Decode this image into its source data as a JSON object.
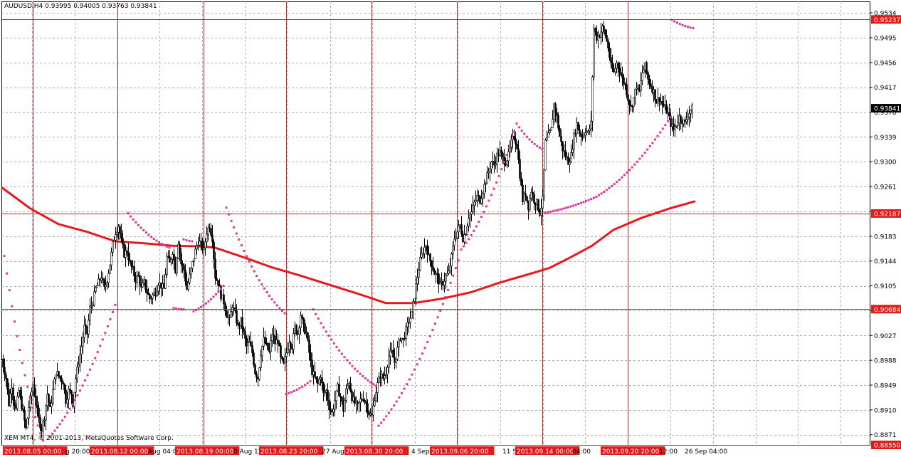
{
  "header": {
    "symbol": "AUDUSD,H4",
    "quote": "0.93995 0.94005 0.93763 0.93841"
  },
  "footer": {
    "copyright": "XEM MT4, © 2001-2013, MetaQuotes Software Corp."
  },
  "colors": {
    "background": "#ffffff",
    "grid": "#b0b0b0",
    "candle": "#000000",
    "moving_average": "#e8191b",
    "parabolic_sar": "#e0379a",
    "level_line": "#d42020",
    "marker_bg": "#e31a1a",
    "current_price_bg": "#000000"
  },
  "chart_data": {
    "type": "candlestick",
    "title": "AUDUSD,H4",
    "ylim": [
      0.8855,
      0.9552
    ],
    "y_ticks": [
      "0.9534",
      "0.9495",
      "0.9456",
      "0.9417",
      "0.9378",
      "0.9339",
      "0.9300",
      "0.9261",
      "0.9222",
      "0.9183",
      "0.9144",
      "0.9105",
      "0.9066",
      "0.9027",
      "0.8988",
      "0.8949",
      "0.8910",
      "0.8871"
    ],
    "current_price": 0.93841,
    "horizontal_levels": [
      0.95237,
      0.92187,
      0.90684,
      0.8855
    ],
    "x_labels": [
      {
        "text": "2013.08.05 00:00",
        "highlight": true
      },
      {
        "text": "g 20:00",
        "highlight": false
      },
      {
        "text": "2013.08.12 00:00",
        "highlight": true
      },
      {
        "text": "Aug 04:00",
        "highlight": false
      },
      {
        "text": "2013.08.19 00:00",
        "highlight": true
      },
      {
        "text": "0 Aug 12",
        "highlight": false
      },
      {
        "text": "2013.08.23 20:00",
        "highlight": true
      },
      {
        "text": "27 Aug",
        "highlight": false
      },
      {
        "text": "2013.08.30 20:00",
        "highlight": true
      },
      {
        "text": "4 Sep",
        "highlight": false
      },
      {
        "text": "2013.09.06 20:00",
        "highlight": true
      },
      {
        "text": "11 S",
        "highlight": false
      },
      {
        "text": "2013.09.14 00:00",
        "highlight": true
      },
      {
        "text": "04:00",
        "highlight": false
      },
      {
        "text": "2013.09.20 20:00",
        "highlight": true
      },
      {
        "text": "12:00",
        "highlight": false
      },
      {
        "text": "26 Sep 04:00",
        "highlight": false
      }
    ],
    "close_path": [
      [
        0,
        0.899
      ],
      [
        6,
        0.896
      ],
      [
        10,
        0.892
      ],
      [
        14,
        0.895
      ],
      [
        16,
        0.893
      ],
      [
        20,
        0.891
      ],
      [
        24,
        0.894
      ],
      [
        30,
        0.8905
      ],
      [
        34,
        0.888
      ],
      [
        38,
        0.8915
      ],
      [
        44,
        0.895
      ],
      [
        48,
        0.892
      ],
      [
        52,
        0.8895
      ],
      [
        56,
        0.888
      ],
      [
        60,
        0.89
      ],
      [
        64,
        0.8935
      ],
      [
        68,
        0.891
      ],
      [
        72,
        0.894
      ],
      [
        76,
        0.897
      ],
      [
        82,
        0.896
      ],
      [
        86,
        0.8955
      ],
      [
        90,
        0.8925
      ],
      [
        94,
        0.894
      ],
      [
        98,
        0.8935
      ],
      [
        100,
        0.892
      ],
      [
        104,
        0.896
      ],
      [
        108,
        0.8985
      ],
      [
        112,
        0.901
      ],
      [
        116,
        0.904
      ],
      [
        120,
        0.903
      ],
      [
        124,
        0.907
      ],
      [
        128,
        0.908
      ],
      [
        132,
        0.91
      ],
      [
        136,
        0.911
      ],
      [
        140,
        0.912
      ],
      [
        144,
        0.91
      ],
      [
        148,
        0.9115
      ],
      [
        152,
        0.914
      ],
      [
        156,
        0.917
      ],
      [
        160,
        0.919
      ],
      [
        164,
        0.92
      ],
      [
        168,
        0.9175
      ],
      [
        172,
        0.9155
      ],
      [
        176,
        0.916
      ],
      [
        180,
        0.914
      ],
      [
        184,
        0.913
      ],
      [
        188,
        0.9115
      ],
      [
        192,
        0.912
      ],
      [
        196,
        0.91
      ],
      [
        200,
        0.911
      ],
      [
        204,
        0.9095
      ],
      [
        208,
        0.9085
      ],
      [
        212,
        0.909
      ],
      [
        216,
        0.9095
      ],
      [
        220,
        0.911
      ],
      [
        224,
        0.9105
      ],
      [
        228,
        0.91
      ],
      [
        232,
        0.915
      ],
      [
        236,
        0.914
      ],
      [
        240,
        0.916
      ],
      [
        244,
        0.913
      ],
      [
        248,
        0.9175
      ],
      [
        252,
        0.914
      ],
      [
        256,
        0.913
      ],
      [
        260,
        0.91
      ],
      [
        264,
        0.912
      ],
      [
        268,
        0.914
      ],
      [
        272,
        0.916
      ],
      [
        276,
        0.9175
      ],
      [
        280,
        0.917
      ],
      [
        284,
        0.916
      ],
      [
        288,
        0.919
      ],
      [
        292,
        0.92
      ],
      [
        296,
        0.918
      ],
      [
        300,
        0.912
      ],
      [
        304,
        0.911
      ],
      [
        308,
        0.909
      ],
      [
        312,
        0.908
      ],
      [
        316,
        0.906
      ],
      [
        320,
        0.905
      ],
      [
        324,
        0.9075
      ],
      [
        328,
        0.906
      ],
      [
        332,
        0.904
      ],
      [
        336,
        0.905
      ],
      [
        340,
        0.903
      ],
      [
        344,
        0.901
      ],
      [
        348,
        0.9015
      ],
      [
        352,
        0.9
      ],
      [
        356,
        0.897
      ],
      [
        360,
        0.896
      ],
      [
        364,
        0.9
      ],
      [
        368,
        0.902
      ],
      [
        372,
        0.901
      ],
      [
        376,
        0.9
      ],
      [
        380,
        0.903
      ],
      [
        384,
        0.9015
      ],
      [
        388,
        0.902
      ],
      [
        392,
        0.899
      ],
      [
        396,
        0.898
      ],
      [
        400,
        0.9
      ],
      [
        404,
        0.902
      ],
      [
        408,
        0.901
      ],
      [
        412,
        0.904
      ],
      [
        416,
        0.903
      ],
      [
        420,
        0.906
      ],
      [
        424,
        0.904
      ],
      [
        428,
        0.903
      ],
      [
        432,
        0.9
      ],
      [
        436,
        0.897
      ],
      [
        440,
        0.896
      ],
      [
        444,
        0.895
      ],
      [
        448,
        0.8965
      ],
      [
        452,
        0.8935
      ],
      [
        456,
        0.894
      ],
      [
        460,
        0.8915
      ],
      [
        464,
        0.8905
      ],
      [
        468,
        0.8925
      ],
      [
        472,
        0.8945
      ],
      [
        476,
        0.893
      ],
      [
        480,
        0.891
      ],
      [
        484,
        0.894
      ],
      [
        488,
        0.8955
      ],
      [
        492,
        0.893
      ],
      [
        496,
        0.892
      ],
      [
        500,
        0.8915
      ],
      [
        504,
        0.8925
      ],
      [
        508,
        0.893
      ],
      [
        512,
        0.892
      ],
      [
        516,
        0.8905
      ],
      [
        520,
        0.89
      ],
      [
        524,
        0.893
      ],
      [
        528,
        0.895
      ],
      [
        532,
        0.8965
      ],
      [
        536,
        0.896
      ],
      [
        540,
        0.897
      ],
      [
        544,
        0.8995
      ],
      [
        548,
        0.9
      ],
      [
        552,
        0.8985
      ],
      [
        556,
        0.9005
      ],
      [
        560,
        0.9025
      ],
      [
        564,
        0.902
      ],
      [
        568,
        0.9035
      ],
      [
        572,
        0.905
      ],
      [
        576,
        0.906
      ],
      [
        580,
        0.909
      ],
      [
        584,
        0.912
      ],
      [
        588,
        0.9145
      ],
      [
        592,
        0.916
      ],
      [
        596,
        0.917
      ],
      [
        600,
        0.915
      ],
      [
        604,
        0.914
      ],
      [
        608,
        0.9125
      ],
      [
        612,
        0.912
      ],
      [
        616,
        0.9105
      ],
      [
        620,
        0.911
      ],
      [
        624,
        0.912
      ],
      [
        628,
        0.9125
      ],
      [
        632,
        0.915
      ],
      [
        636,
        0.918
      ],
      [
        640,
        0.919
      ],
      [
        644,
        0.92
      ],
      [
        648,
        0.918
      ],
      [
        652,
        0.919
      ],
      [
        656,
        0.9215
      ],
      [
        660,
        0.922
      ],
      [
        664,
        0.9235
      ],
      [
        668,
        0.9245
      ],
      [
        672,
        0.924
      ],
      [
        676,
        0.9255
      ],
      [
        680,
        0.927
      ],
      [
        684,
        0.9285
      ],
      [
        688,
        0.93
      ],
      [
        692,
        0.9295
      ],
      [
        696,
        0.931
      ],
      [
        700,
        0.9315
      ],
      [
        704,
        0.9305
      ],
      [
        708,
        0.93
      ],
      [
        712,
        0.931
      ],
      [
        716,
        0.933
      ],
      [
        720,
        0.934
      ],
      [
        724,
        0.9325
      ],
      [
        728,
        0.928
      ],
      [
        732,
        0.924
      ],
      [
        736,
        0.925
      ],
      [
        740,
        0.923
      ],
      [
        744,
        0.9255
      ],
      [
        748,
        0.924
      ],
      [
        752,
        0.9235
      ],
      [
        756,
        0.922
      ],
      [
        760,
        0.924
      ],
      [
        764,
        0.933
      ],
      [
        768,
        0.934
      ],
      [
        772,
        0.935
      ],
      [
        776,
        0.939
      ],
      [
        780,
        0.937
      ],
      [
        784,
        0.934
      ],
      [
        788,
        0.932
      ],
      [
        792,
        0.931
      ],
      [
        796,
        0.93
      ],
      [
        800,
        0.931
      ],
      [
        804,
        0.934
      ],
      [
        808,
        0.936
      ],
      [
        812,
        0.9345
      ],
      [
        816,
        0.934
      ],
      [
        820,
        0.935
      ],
      [
        824,
        0.9345
      ],
      [
        828,
        0.936
      ],
      [
        832,
        0.951
      ],
      [
        836,
        0.9495
      ],
      [
        840,
        0.95
      ],
      [
        844,
        0.951
      ],
      [
        848,
        0.95
      ],
      [
        852,
        0.948
      ],
      [
        856,
        0.945
      ],
      [
        860,
        0.944
      ],
      [
        864,
        0.9455
      ],
      [
        868,
        0.9445
      ],
      [
        872,
        0.943
      ],
      [
        876,
        0.942
      ],
      [
        880,
        0.94
      ],
      [
        884,
        0.9385
      ],
      [
        888,
        0.94
      ],
      [
        892,
        0.942
      ],
      [
        896,
        0.941
      ],
      [
        900,
        0.944
      ],
      [
        904,
        0.945
      ],
      [
        908,
        0.943
      ],
      [
        912,
        0.942
      ],
      [
        916,
        0.941
      ],
      [
        920,
        0.9395
      ],
      [
        924,
        0.94
      ],
      [
        928,
        0.939
      ],
      [
        932,
        0.9385
      ],
      [
        936,
        0.9375
      ],
      [
        940,
        0.936
      ],
      [
        944,
        0.935
      ],
      [
        948,
        0.936
      ],
      [
        952,
        0.937
      ],
      [
        956,
        0.9365
      ],
      [
        960,
        0.936
      ],
      [
        964,
        0.9375
      ],
      [
        970,
        0.93841
      ]
    ],
    "moving_average": [
      [
        0,
        0.926
      ],
      [
        40,
        0.9227
      ],
      [
        80,
        0.9202
      ],
      [
        120,
        0.919
      ],
      [
        160,
        0.9175
      ],
      [
        200,
        0.9172
      ],
      [
        240,
        0.9168
      ],
      [
        280,
        0.9167
      ],
      [
        300,
        0.9165
      ],
      [
        340,
        0.915
      ],
      [
        380,
        0.9134
      ],
      [
        420,
        0.9121
      ],
      [
        460,
        0.9107
      ],
      [
        500,
        0.9093
      ],
      [
        540,
        0.9078
      ],
      [
        580,
        0.9078
      ],
      [
        620,
        0.9085
      ],
      [
        660,
        0.9095
      ],
      [
        700,
        0.911
      ],
      [
        740,
        0.9123
      ],
      [
        770,
        0.9133
      ],
      [
        800,
        0.915
      ],
      [
        830,
        0.9168
      ],
      [
        860,
        0.9193
      ],
      [
        900,
        0.9212
      ],
      [
        940,
        0.9227
      ],
      [
        975,
        0.9238
      ]
    ],
    "parabolic_sar": [
      {
        "from": [
          4,
          0.9152
        ],
        "to": [
          62,
          0.8852
        ]
      },
      {
        "from": [
          68,
          0.8868
        ],
        "to": [
          160,
          0.9075
        ]
      },
      {
        "from": [
          178,
          0.9219
        ],
        "to": [
          236,
          0.9165
        ]
      },
      {
        "from": [
          242,
          0.907
        ],
        "to": [
          256,
          0.9068
        ]
      },
      {
        "from": [
          256,
          0.9178
        ],
        "to": [
          268,
          0.9175
        ]
      },
      {
        "from": [
          270,
          0.9065
        ],
        "to": [
          312,
          0.9105
        ]
      },
      {
        "from": [
          316,
          0.9228
        ],
        "to": [
          398,
          0.9062
        ]
      },
      {
        "from": [
          400,
          0.8935
        ],
        "to": [
          434,
          0.8955
        ]
      },
      {
        "from": [
          438,
          0.9068
        ],
        "to": [
          526,
          0.8948
        ]
      },
      {
        "from": [
          530,
          0.8885
        ],
        "to": [
          642,
          0.9145
        ]
      },
      {
        "from": [
          646,
          0.9162
        ],
        "to": [
          724,
          0.936
        ]
      },
      {
        "from": [
          724,
          0.936
        ],
        "to": [
          760,
          0.932
        ]
      },
      {
        "from": [
          764,
          0.922
        ],
        "to": [
          836,
          0.9245
        ]
      },
      {
        "from": [
          836,
          0.9245
        ],
        "to": [
          940,
          0.937
        ]
      },
      {
        "from": [
          942,
          0.9523
        ],
        "to": [
          972,
          0.951
        ]
      }
    ]
  }
}
